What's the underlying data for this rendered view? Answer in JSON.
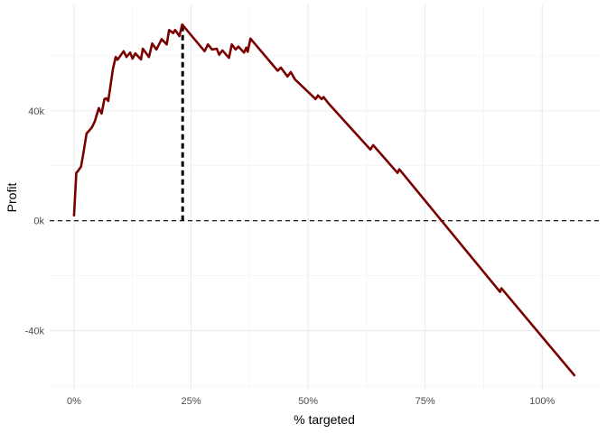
{
  "chart_data": {
    "type": "line",
    "title": "",
    "xlabel": "% targeted",
    "ylabel": "Profit",
    "xlim": [
      -5.2,
      112.5
    ],
    "ylim": [
      -61.5,
      78.7
    ],
    "x_ticks": [
      0,
      25,
      50,
      75,
      100
    ],
    "x_tick_labels": [
      "0%",
      "25%",
      "50%",
      "75%",
      "100%"
    ],
    "y_ticks": [
      -40,
      0,
      40
    ],
    "y_tick_labels": [
      "-40k",
      "0k",
      "40k"
    ],
    "grid": true,
    "line_color": "#7a0000",
    "reference_lines": [
      {
        "type": "horizontal",
        "y": 0,
        "style": "dashed",
        "color": "#000000"
      },
      {
        "type": "vertical",
        "x": 23.2,
        "y_from": 0,
        "y_to": 71.4,
        "style": "dotted-thick",
        "color": "#000000"
      }
    ],
    "series": [
      {
        "x": [
          0,
          0.5,
          0.8,
          1.5,
          1.9,
          2.7,
          3.1,
          3.8,
          4.4,
          5.3,
          5.9,
          6.5,
          6.9,
          7.3,
          7.7,
          8.3,
          8.9,
          9.3,
          10.6,
          11.2,
          12,
          12.5,
          13.1,
          14.3,
          14.7,
          16,
          16.7,
          17.6,
          18.7,
          19.8,
          20.3,
          21.2,
          21.6,
          22.5,
          23.1,
          27.9,
          28.6,
          29.5,
          30.5,
          31,
          31.7,
          33.1,
          33.7,
          34.5,
          35.1,
          36.3,
          36.8,
          37.1,
          37.7,
          43.5,
          44.2,
          45.6,
          46.3,
          47.2,
          51.6,
          52.1,
          52.9,
          53.3,
          54.4,
          63.3,
          63.9,
          69.1,
          69.5,
          91,
          91.3,
          107
        ],
        "y": [
          1.6,
          17.5,
          18,
          19.7,
          23.6,
          31.8,
          32.5,
          33.9,
          36,
          41,
          39,
          44.3,
          44.6,
          43.6,
          48.2,
          55.2,
          59.6,
          58.6,
          61.7,
          59.6,
          61.2,
          59,
          60.9,
          58.7,
          62.6,
          59.6,
          64.5,
          62.3,
          66.1,
          64.2,
          69.4,
          68.3,
          69.4,
          67.2,
          71.4,
          61.7,
          64.2,
          62.3,
          62.6,
          60.4,
          62,
          59.3,
          64.2,
          62.3,
          63.4,
          61.2,
          63,
          61.5,
          66.3,
          54.6,
          55.7,
          52.5,
          54.1,
          51.4,
          44.3,
          45.6,
          44.3,
          45,
          42.6,
          25.9,
          27.5,
          17.4,
          18.7,
          -25.9,
          -24.6,
          -56.5
        ]
      }
    ]
  }
}
